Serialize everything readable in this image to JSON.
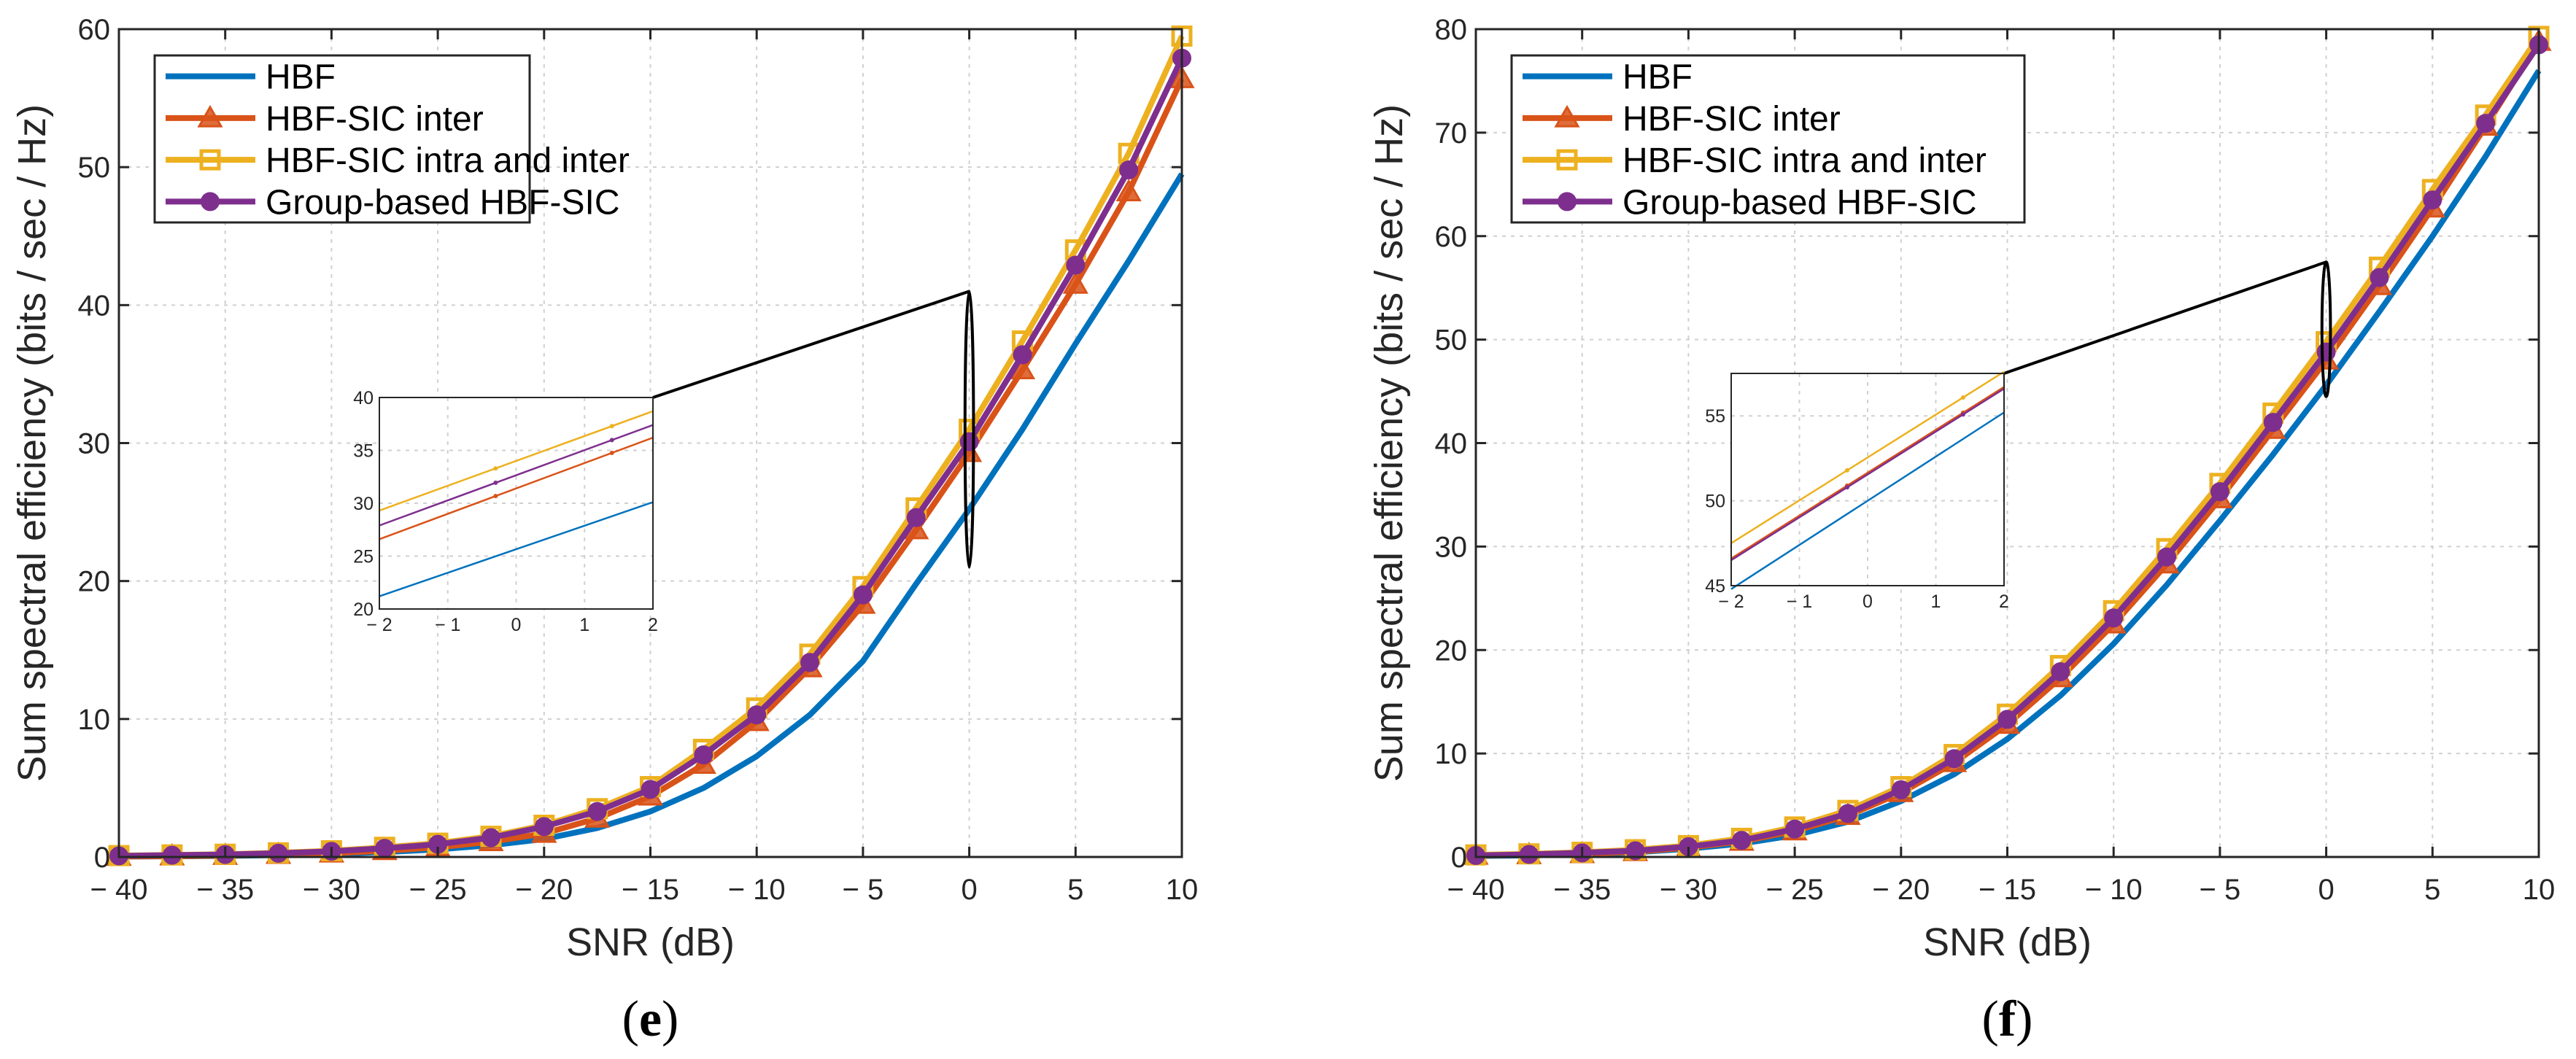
{
  "chart_data": [
    {
      "type": "line",
      "panel_label_open": "(",
      "panel_label_letter": "e",
      "panel_label_close": ")",
      "xlabel": "SNR (dB)",
      "ylabel": "Sum spectral efficiency (bits / sec / Hz)",
      "xlim": [
        -40,
        10
      ],
      "ylim": [
        0,
        60
      ],
      "xticks": [
        -40,
        -35,
        -30,
        -25,
        -20,
        -15,
        -10,
        -5,
        0,
        5,
        10
      ],
      "xtick_labels": [
        "− 40",
        "− 35",
        "− 30",
        "− 25",
        "− 20",
        "− 15",
        "− 10",
        "− 5",
        "0",
        "5",
        "10"
      ],
      "yticks": [
        0,
        10,
        20,
        30,
        40,
        50,
        60
      ],
      "ytick_labels": [
        "0",
        "10",
        "20",
        "30",
        "40",
        "50",
        "60"
      ],
      "grid": true,
      "legend_position": "top-left",
      "x": [
        -40,
        -37.5,
        -35,
        -32.5,
        -30,
        -27.5,
        -25,
        -22.5,
        -20,
        -17.5,
        -15,
        -12.5,
        -10,
        -7.5,
        -5,
        -2.5,
        0,
        2.5,
        5,
        7.5,
        10
      ],
      "series": [
        {
          "name": "HBF",
          "color": "#0072BD",
          "marker": "none",
          "values": [
            0.03,
            0.05,
            0.08,
            0.13,
            0.22,
            0.36,
            0.55,
            0.85,
            1.3,
            2.1,
            3.3,
            5.0,
            7.3,
            10.3,
            14.2,
            19.8,
            25.2,
            31.0,
            37.2,
            43.2,
            49.5
          ]
        },
        {
          "name": "HBF-SIC inter",
          "color": "#D95319",
          "marker": "triangle",
          "values": [
            0.03,
            0.06,
            0.1,
            0.17,
            0.27,
            0.45,
            0.7,
            1.1,
            1.7,
            2.8,
            4.4,
            6.7,
            9.8,
            13.7,
            18.3,
            23.7,
            29.3,
            35.3,
            41.5,
            48.2,
            56.4
          ]
        },
        {
          "name": "HBF-SIC intra and inter",
          "color": "#EDB120",
          "marker": "square",
          "values": [
            0.1,
            0.15,
            0.2,
            0.3,
            0.45,
            0.7,
            1.0,
            1.5,
            2.3,
            3.5,
            5.1,
            7.8,
            10.8,
            14.7,
            19.6,
            25.3,
            31.0,
            37.4,
            44.0,
            51.0,
            59.5
          ]
        },
        {
          "name": "Group-based HBF-SIC",
          "color": "#7E2F8E",
          "marker": "circle",
          "values": [
            0.08,
            0.13,
            0.18,
            0.27,
            0.41,
            0.63,
            0.92,
            1.4,
            2.2,
            3.3,
            4.9,
            7.4,
            10.3,
            14.1,
            19.0,
            24.6,
            30.1,
            36.4,
            42.9,
            49.8,
            57.9
          ]
        }
      ],
      "inset": {
        "xlim": [
          -2,
          2
        ],
        "ylim": [
          20,
          40
        ],
        "xticks": [
          -2,
          -1,
          0,
          1,
          2
        ],
        "xtick_labels": [
          "− 2",
          "− 1",
          "0",
          "1",
          "2"
        ],
        "yticks": [
          20,
          25,
          30,
          35,
          40
        ],
        "ytick_labels": [
          "20",
          "25",
          "30",
          "35",
          "40"
        ],
        "x": [
          -2,
          2
        ],
        "series": [
          {
            "name": "HBF",
            "color": "#0072BD",
            "values": [
              21.2,
              30.1
            ]
          },
          {
            "name": "HBF-SIC inter",
            "color": "#D95319",
            "values": [
              26.6,
              36.2
            ]
          },
          {
            "name": "HBF-SIC intra and inter",
            "color": "#EDB120",
            "values": [
              29.3,
              38.7
            ]
          },
          {
            "name": "Group-based HBF-SIC",
            "color": "#7E2F8E",
            "values": [
              27.9,
              37.4
            ]
          }
        ],
        "zoom_center": [
          0,
          31
        ],
        "zoom_half_size": [
          0.2,
          10
        ]
      }
    },
    {
      "type": "line",
      "panel_label_open": "(",
      "panel_label_letter": "f",
      "panel_label_close": ")",
      "xlabel": "SNR (dB)",
      "ylabel": "Sum spectral efficiency (bits / sec / Hz)",
      "xlim": [
        -40,
        10
      ],
      "ylim": [
        0,
        80
      ],
      "xticks": [
        -40,
        -35,
        -30,
        -25,
        -20,
        -15,
        -10,
        -5,
        0,
        5,
        10
      ],
      "xtick_labels": [
        "− 40",
        "− 35",
        "− 30",
        "− 25",
        "− 20",
        "− 15",
        "− 10",
        "− 5",
        "0",
        "5",
        "10"
      ],
      "yticks": [
        0,
        10,
        20,
        30,
        40,
        50,
        60,
        70,
        80
      ],
      "ytick_labels": [
        "0",
        "10",
        "20",
        "30",
        "40",
        "50",
        "60",
        "70",
        "80"
      ],
      "grid": true,
      "legend_position": "top-left",
      "x": [
        -40,
        -37.5,
        -35,
        -32.5,
        -30,
        -27.5,
        -25,
        -22.5,
        -20,
        -17.5,
        -15,
        -12.5,
        -10,
        -7.5,
        -5,
        -2.5,
        0,
        2.5,
        5,
        7.5,
        10
      ],
      "series": [
        {
          "name": "HBF",
          "color": "#0072BD",
          "marker": "none",
          "values": [
            0.1,
            0.15,
            0.25,
            0.45,
            0.8,
            1.3,
            2.1,
            3.4,
            5.4,
            8.0,
            11.4,
            15.6,
            20.6,
            26.3,
            32.5,
            38.9,
            45.6,
            52.7,
            60.0,
            67.7,
            76.0
          ]
        },
        {
          "name": "HBF-SIC inter",
          "color": "#D95319",
          "marker": "triangle",
          "values": [
            0.15,
            0.2,
            0.3,
            0.5,
            0.9,
            1.5,
            2.5,
            4.0,
            6.2,
            9.1,
            12.8,
            17.3,
            22.5,
            28.3,
            34.6,
            41.3,
            48.0,
            55.2,
            62.7,
            70.6,
            78.8
          ]
        },
        {
          "name": "HBF-SIC intra and inter",
          "color": "#EDB120",
          "marker": "square",
          "values": [
            0.2,
            0.3,
            0.45,
            0.7,
            1.1,
            1.8,
            2.9,
            4.5,
            6.8,
            9.9,
            13.8,
            18.5,
            23.8,
            29.8,
            36.1,
            42.9,
            49.8,
            57.0,
            64.5,
            71.7,
            79.3
          ]
        },
        {
          "name": "Group-based HBF-SIC",
          "color": "#7E2F8E",
          "marker": "circle",
          "values": [
            0.15,
            0.25,
            0.4,
            0.6,
            1.0,
            1.6,
            2.7,
            4.2,
            6.5,
            9.5,
            13.3,
            17.9,
            23.1,
            29.0,
            35.3,
            42.0,
            48.8,
            56.0,
            63.5,
            70.9,
            78.5
          ]
        }
      ],
      "inset": {
        "xlim": [
          -2,
          2
        ],
        "ylim": [
          45,
          57.5
        ],
        "xticks": [
          -2,
          -1,
          0,
          1,
          2
        ],
        "xtick_labels": [
          "− 2",
          "− 1",
          "0",
          "1",
          "2"
        ],
        "yticks": [
          45,
          50,
          55
        ],
        "ytick_labels": [
          "45",
          "50",
          "55"
        ],
        "x": [
          -2,
          2
        ],
        "series": [
          {
            "name": "HBF",
            "color": "#0072BD",
            "values": [
              44.8,
              55.2
            ]
          },
          {
            "name": "HBF-SIC inter",
            "color": "#D95319",
            "values": [
              46.6,
              56.7
            ]
          },
          {
            "name": "HBF-SIC intra and inter",
            "color": "#EDB120",
            "values": [
              47.5,
              57.6
            ]
          },
          {
            "name": "Group-based HBF-SIC",
            "color": "#7E2F8E",
            "values": [
              46.5,
              56.6
            ]
          }
        ],
        "zoom_center": [
          0,
          51
        ],
        "zoom_half_size": [
          0.2,
          6.5
        ]
      }
    }
  ]
}
